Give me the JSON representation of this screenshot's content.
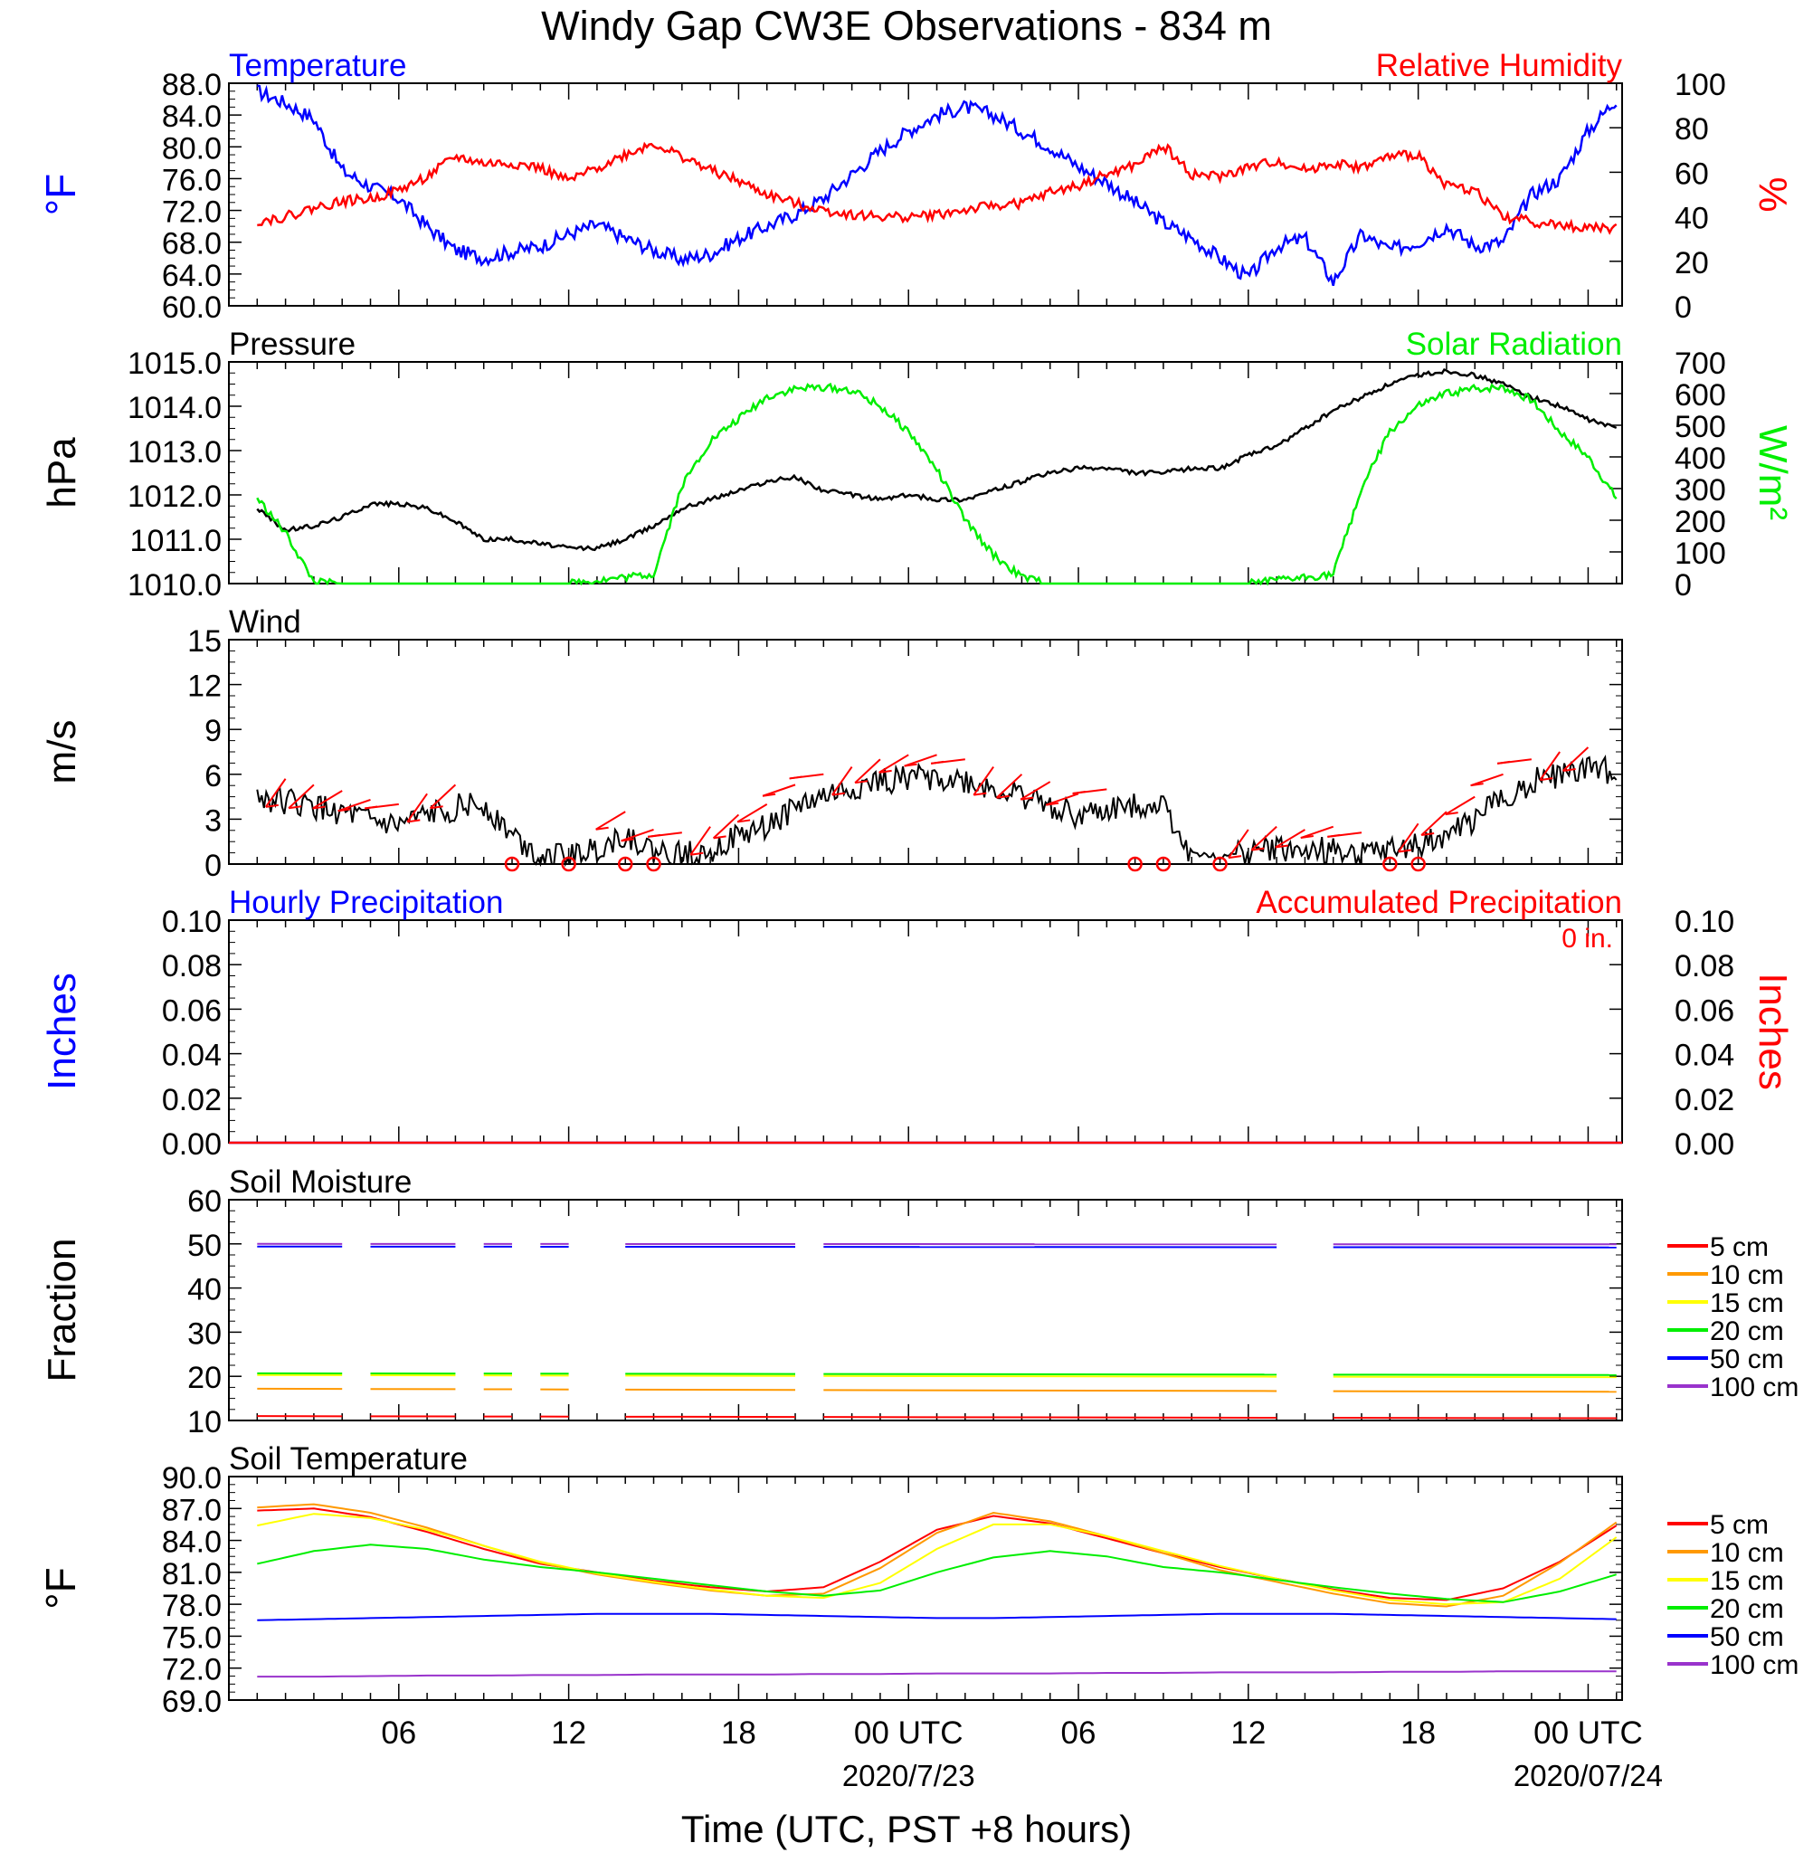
{
  "page": {
    "title": "Windy Gap CW3E Observations - 834 m",
    "xlabel": "Time (UTC, PST +8 hours)",
    "time_ticks": [
      "06",
      "12",
      "18",
      "00 UTC",
      "06",
      "12",
      "18",
      "00 UTC"
    ],
    "dates": [
      "2020/7/23",
      "2020/07/24"
    ]
  },
  "chart_data": [
    {
      "id": "temp_rh",
      "type": "line",
      "title_left": "Temperature",
      "title_right": "Relative Humidity",
      "ylabel_left": "°F",
      "ylabel_right": "%",
      "ylim_left": [
        60,
        88
      ],
      "ylim_right": [
        0,
        100
      ],
      "yticks_left": [
        "88.0",
        "84.0",
        "80.0",
        "76.0",
        "72.0",
        "68.0",
        "64.0",
        "60.0"
      ],
      "yticks_right": [
        "100",
        "80",
        "60",
        "40",
        "20",
        "0"
      ],
      "x_hours": [
        1,
        2,
        3,
        4,
        5,
        6,
        7,
        8,
        9,
        10,
        11,
        12,
        13,
        14,
        15,
        16,
        17,
        18,
        19,
        20,
        21,
        22,
        23,
        24,
        25,
        26,
        27,
        28,
        29,
        30,
        31,
        32,
        33,
        34,
        35,
        36,
        37,
        38,
        39,
        40,
        41,
        42,
        43,
        44,
        45,
        46,
        47,
        48,
        49
      ],
      "series": [
        {
          "name": "Temperature",
          "color": "#0000ff",
          "axis": "left",
          "values": [
            87.0,
            85.5,
            83.5,
            77.0,
            75.0,
            73.5,
            70.0,
            67.0,
            66.0,
            66.8,
            67.5,
            69.0,
            70.2,
            68.5,
            67.0,
            65.8,
            66.5,
            68.5,
            70.0,
            71.5,
            73.5,
            76.5,
            79.5,
            82.0,
            84.0,
            85.0,
            84.0,
            82.0,
            80.0,
            77.5,
            75.5,
            73.0,
            70.5,
            68.5,
            66.0,
            63.5,
            67.5,
            68.5,
            63.0,
            69.0,
            67.0,
            68.0,
            70.0,
            67.5,
            68.0,
            74.0,
            76.0,
            82.0,
            86.0
          ]
        },
        {
          "name": "Relative Humidity",
          "color": "#ff0000",
          "axis": "right",
          "values": [
            38,
            40,
            44,
            47,
            48,
            52,
            58,
            67,
            64,
            64,
            62,
            56,
            62,
            68,
            73,
            67,
            61,
            56,
            50,
            46,
            43,
            41,
            40,
            40,
            41,
            43,
            45,
            46,
            51,
            54,
            59,
            63,
            72,
            59,
            58,
            62,
            65,
            61,
            64,
            62,
            67,
            68,
            54,
            52,
            40,
            38,
            36,
            35,
            35
          ]
        }
      ]
    },
    {
      "id": "pressure_solar",
      "type": "line",
      "title_left": "Pressure",
      "title_right": "Solar Radiation",
      "ylabel_left": "hPa",
      "ylabel_right": "W/m²",
      "ylim_left": [
        1010,
        1015
      ],
      "ylim_right": [
        0,
        700
      ],
      "yticks_left": [
        "1015.0",
        "1014.0",
        "1013.0",
        "1012.0",
        "1011.0",
        "1010.0"
      ],
      "yticks_right": [
        "700",
        "600",
        "500",
        "400",
        "300",
        "200",
        "100",
        "0"
      ],
      "x_hours": [
        1,
        2,
        3,
        4,
        5,
        6,
        7,
        8,
        9,
        10,
        11,
        12,
        13,
        14,
        15,
        16,
        17,
        18,
        19,
        20,
        21,
        22,
        23,
        24,
        25,
        26,
        27,
        28,
        29,
        30,
        31,
        32,
        33,
        34,
        35,
        36,
        37,
        38,
        39,
        40,
        41,
        42,
        43,
        44,
        45,
        46,
        47,
        48,
        49
      ],
      "series": [
        {
          "name": "Pressure",
          "color": "#000000",
          "axis": "left",
          "values": [
            1011.7,
            1011.2,
            1011.3,
            1011.5,
            1011.8,
            1011.8,
            1011.7,
            1011.4,
            1011.0,
            1011.0,
            1010.9,
            1010.8,
            1010.8,
            1011.0,
            1011.3,
            1011.7,
            1011.9,
            1012.1,
            1012.3,
            1012.4,
            1012.1,
            1012.0,
            1011.9,
            1012.0,
            1011.9,
            1011.9,
            1012.1,
            1012.3,
            1012.5,
            1012.6,
            1012.6,
            1012.5,
            1012.5,
            1012.6,
            1012.6,
            1012.9,
            1013.1,
            1013.5,
            1013.9,
            1014.2,
            1014.5,
            1014.7,
            1014.8,
            1014.7,
            1014.5,
            1014.2,
            1014.0,
            1013.7,
            1013.5
          ]
        },
        {
          "name": "Solar Radiation",
          "color": "#00ee00",
          "axis": "right",
          "values": [
            270,
            160,
            5,
            0,
            0,
            0,
            0,
            0,
            0,
            0,
            0,
            0,
            10,
            20,
            30,
            310,
            450,
            520,
            590,
            615,
            620,
            610,
            560,
            480,
            360,
            200,
            90,
            20,
            0,
            0,
            0,
            0,
            0,
            0,
            0,
            0,
            10,
            20,
            30,
            300,
            480,
            560,
            600,
            615,
            620,
            580,
            480,
            400,
            270
          ]
        }
      ]
    },
    {
      "id": "wind",
      "type": "line",
      "title_left": "Wind",
      "ylabel_left": "m/s",
      "ylim_left": [
        0,
        15
      ],
      "yticks_left": [
        "15",
        "12",
        "9",
        "6",
        "3",
        "0"
      ],
      "x_hours": [
        1,
        2,
        3,
        4,
        5,
        6,
        7,
        8,
        9,
        10,
        11,
        12,
        13,
        14,
        15,
        16,
        17,
        18,
        19,
        20,
        21,
        22,
        23,
        24,
        25,
        26,
        27,
        28,
        29,
        30,
        31,
        32,
        33,
        34,
        35,
        36,
        37,
        38,
        39,
        40,
        41,
        42,
        43,
        44,
        45,
        46,
        47,
        48,
        49
      ],
      "series": [
        {
          "name": "Wind speed",
          "color": "#000000",
          "axis": "left",
          "values": [
            4.5,
            4.2,
            3.8,
            3.4,
            2.8,
            2.5,
            3.2,
            3.8,
            4.0,
            2.0,
            0.5,
            0.5,
            1.0,
            2.0,
            0.8,
            0.6,
            1.0,
            1.8,
            2.5,
            3.8,
            4.5,
            5.0,
            5.5,
            5.8,
            5.8,
            5.5,
            5.0,
            4.5,
            4.0,
            3.2,
            3.5,
            4.0,
            4.0,
            0.5,
            0.3,
            0.8,
            1.0,
            0.8,
            1.0,
            0.6,
            0.8,
            1.2,
            2.0,
            3.0,
            4.5,
            5.5,
            6.0,
            6.3,
            6.2
          ]
        }
      ],
      "barb_color": "#ff0000",
      "barbs_hours": [
        2,
        3,
        4,
        5,
        6,
        7,
        8,
        14,
        15,
        16,
        17,
        18,
        19,
        20,
        21,
        22,
        23,
        24,
        25,
        26,
        27,
        28,
        29,
        30,
        31,
        36,
        37,
        38,
        39,
        40,
        42,
        43,
        44,
        45,
        46,
        47,
        48
      ],
      "calm_hours": [
        10,
        12,
        14,
        15,
        32,
        33,
        35,
        41,
        42
      ]
    },
    {
      "id": "precip",
      "type": "line",
      "title_left": "Hourly Precipitation",
      "title_right": "Accumulated Precipitation",
      "total_label": "0 in.",
      "ylabel_left": "Inches",
      "ylabel_right": "Inches",
      "ylim_left": [
        0,
        0.1
      ],
      "ylim_right": [
        0,
        0.1
      ],
      "yticks_left": [
        "0.10",
        "0.08",
        "0.06",
        "0.04",
        "0.02",
        "0.00"
      ],
      "yticks_right": [
        "0.10",
        "0.08",
        "0.06",
        "0.04",
        "0.02",
        "0.00"
      ],
      "series": [
        {
          "name": "Hourly Precipitation",
          "color": "#0000ff",
          "values": [
            0,
            0
          ]
        },
        {
          "name": "Accumulated Precipitation",
          "color": "#ff0000",
          "values": [
            0,
            0
          ]
        }
      ]
    },
    {
      "id": "soil_moisture",
      "type": "line",
      "title_left": "Soil Moisture",
      "ylabel_left": "Fraction",
      "ylim_left": [
        10,
        60
      ],
      "yticks_left": [
        "60",
        "50",
        "40",
        "30",
        "20",
        "10"
      ],
      "segments_hours": [
        [
          1,
          4
        ],
        [
          5,
          8
        ],
        [
          9,
          10
        ],
        [
          11,
          12
        ],
        [
          14,
          20
        ],
        [
          21,
          37
        ],
        [
          39,
          49
        ]
      ],
      "series": [
        {
          "name": "5 cm",
          "color": "#ff0000",
          "values": [
            11.0,
            10.5
          ]
        },
        {
          "name": "10 cm",
          "color": "#ff9900",
          "values": [
            17.2,
            16.5
          ]
        },
        {
          "name": "15 cm",
          "color": "#ffff00",
          "values": [
            20.3,
            19.8
          ]
        },
        {
          "name": "20 cm",
          "color": "#00ee00",
          "values": [
            20.7,
            20.3
          ]
        },
        {
          "name": "50 cm",
          "color": "#0000ff",
          "values": [
            49.4,
            49.2
          ]
        },
        {
          "name": "100 cm",
          "color": "#9933cc",
          "values": [
            50.0,
            49.9
          ]
        }
      ]
    },
    {
      "id": "soil_temperature",
      "type": "line",
      "title_left": "Soil Temperature",
      "ylabel_left": "°F",
      "ylim_left": [
        69,
        90
      ],
      "yticks_left": [
        "90.0",
        "87.0",
        "84.0",
        "81.0",
        "78.0",
        "75.0",
        "72.0",
        "69.0"
      ],
      "x_hours": [
        1,
        3,
        5,
        7,
        9,
        11,
        13,
        15,
        17,
        19,
        21,
        23,
        25,
        27,
        29,
        31,
        33,
        35,
        37,
        39,
        41,
        43,
        45,
        47,
        49
      ],
      "series": [
        {
          "name": "5 cm",
          "color": "#ff0000",
          "values": [
            86.8,
            87.0,
            86.2,
            84.8,
            83.2,
            81.8,
            81.0,
            80.2,
            79.6,
            79.2,
            79.6,
            82.0,
            85.0,
            86.3,
            85.6,
            84.2,
            82.8,
            81.5,
            80.4,
            79.4,
            78.6,
            78.4,
            79.5,
            82.0,
            85.4
          ]
        },
        {
          "name": "10 cm",
          "color": "#ff9900",
          "values": [
            87.1,
            87.4,
            86.6,
            85.2,
            83.5,
            81.9,
            80.8,
            80.0,
            79.3,
            78.8,
            79.0,
            81.4,
            84.7,
            86.6,
            85.8,
            84.4,
            82.8,
            81.2,
            80.1,
            79.0,
            78.1,
            77.8,
            78.8,
            81.9,
            85.7
          ]
        },
        {
          "name": "15 cm",
          "color": "#ffff00",
          "values": [
            85.4,
            86.5,
            86.1,
            85.0,
            83.5,
            82.0,
            80.9,
            80.1,
            79.4,
            78.8,
            78.6,
            80.0,
            83.2,
            85.5,
            85.5,
            84.4,
            83.0,
            81.6,
            80.4,
            79.3,
            78.4,
            78.0,
            78.2,
            80.4,
            84.3
          ]
        },
        {
          "name": "20 cm",
          "color": "#00ee00",
          "values": [
            81.8,
            83.0,
            83.6,
            83.2,
            82.2,
            81.5,
            81.0,
            80.4,
            79.8,
            79.2,
            78.8,
            79.3,
            81.0,
            82.4,
            83.0,
            82.5,
            81.5,
            81.0,
            80.3,
            79.6,
            79.0,
            78.5,
            78.2,
            79.2,
            80.8
          ]
        },
        {
          "name": "50 cm",
          "color": "#0000ff",
          "values": [
            76.5,
            76.6,
            76.7,
            76.8,
            76.9,
            77.0,
            77.1,
            77.1,
            77.1,
            77.0,
            76.9,
            76.8,
            76.7,
            76.7,
            76.8,
            76.9,
            77.0,
            77.1,
            77.1,
            77.1,
            77.0,
            76.9,
            76.8,
            76.7,
            76.6
          ]
        },
        {
          "name": "100 cm",
          "color": "#9933cc",
          "values": [
            71.2,
            71.2,
            71.25,
            71.3,
            71.3,
            71.35,
            71.35,
            71.4,
            71.4,
            71.4,
            71.45,
            71.45,
            71.5,
            71.5,
            71.5,
            71.55,
            71.55,
            71.6,
            71.6,
            71.6,
            71.65,
            71.65,
            71.7,
            71.7,
            71.7
          ]
        }
      ]
    }
  ]
}
